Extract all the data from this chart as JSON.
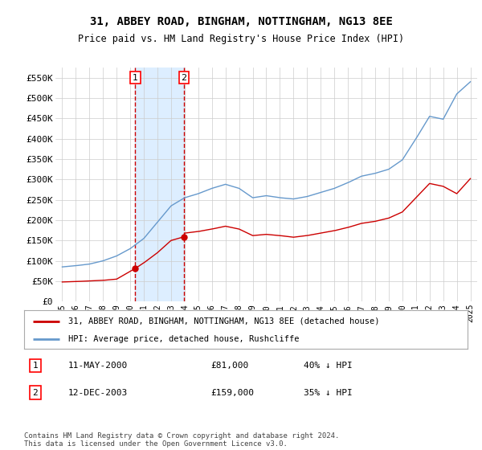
{
  "title1": "31, ABBEY ROAD, BINGHAM, NOTTINGHAM, NG13 8EE",
  "title2": "Price paid vs. HM Land Registry's House Price Index (HPI)",
  "ylim": [
    0,
    575000
  ],
  "yticks": [
    0,
    50000,
    100000,
    150000,
    200000,
    250000,
    300000,
    350000,
    400000,
    450000,
    500000,
    550000
  ],
  "ytick_labels": [
    "£0",
    "£50K",
    "£100K",
    "£150K",
    "£200K",
    "£250K",
    "£300K",
    "£350K",
    "£400K",
    "£450K",
    "£500K",
    "£550K"
  ],
  "xlim_start": 1994.5,
  "xlim_end": 2025.5,
  "sale1_date": 2000.36,
  "sale1_price": 81000,
  "sale2_date": 2003.95,
  "sale2_price": 159000,
  "vline1_x": 2000.36,
  "vline2_x": 2003.95,
  "legend_line1": "31, ABBEY ROAD, BINGHAM, NOTTINGHAM, NG13 8EE (detached house)",
  "legend_line2": "HPI: Average price, detached house, Rushcliffe",
  "table_row1_num": "1",
  "table_row1_date": "11-MAY-2000",
  "table_row1_price": "£81,000",
  "table_row1_hpi": "40% ↓ HPI",
  "table_row2_num": "2",
  "table_row2_date": "12-DEC-2003",
  "table_row2_price": "£159,000",
  "table_row2_hpi": "35% ↓ HPI",
  "footnote": "Contains HM Land Registry data © Crown copyright and database right 2024.\nThis data is licensed under the Open Government Licence v3.0.",
  "red_color": "#cc0000",
  "blue_color": "#6699cc",
  "shade_color": "#ddeeff",
  "bg_color": "#ffffff",
  "grid_color": "#cccccc",
  "hpi_knots": [
    1995,
    1996,
    1997,
    1998,
    1999,
    2000,
    2001,
    2002,
    2003,
    2004,
    2005,
    2006,
    2007,
    2008,
    2009,
    2010,
    2011,
    2012,
    2013,
    2014,
    2015,
    2016,
    2017,
    2018,
    2019,
    2020,
    2021,
    2022,
    2023,
    2024,
    2025
  ],
  "hpi_vals": [
    85000,
    88000,
    92000,
    100000,
    112000,
    130000,
    155000,
    195000,
    235000,
    255000,
    265000,
    278000,
    288000,
    278000,
    255000,
    260000,
    255000,
    252000,
    258000,
    268000,
    278000,
    292000,
    308000,
    315000,
    325000,
    348000,
    400000,
    455000,
    448000,
    510000,
    540000
  ],
  "red_knots_pre": [
    1995,
    1996,
    1997,
    1998,
    1999,
    2000.36
  ],
  "red_vals_pre": [
    48000,
    49000,
    50500,
    52000,
    55000,
    81000
  ],
  "red_knots_mid": [
    2000.36,
    2001,
    2002,
    2003,
    2003.95
  ],
  "red_vals_mid": [
    81000,
    95000,
    120000,
    150000,
    159000
  ],
  "red_knots_post": [
    2003.95,
    2004,
    2005,
    2006,
    2007,
    2008,
    2009,
    2010,
    2011,
    2012,
    2013,
    2014,
    2015,
    2016,
    2017,
    2018,
    2019,
    2020,
    2021,
    2022,
    2023,
    2024,
    2025
  ],
  "red_vals_post": [
    159000,
    168000,
    172000,
    178000,
    185000,
    178000,
    162000,
    165000,
    162000,
    158000,
    162000,
    168000,
    174000,
    182000,
    192000,
    197000,
    205000,
    220000,
    255000,
    290000,
    283000,
    265000,
    302000
  ]
}
